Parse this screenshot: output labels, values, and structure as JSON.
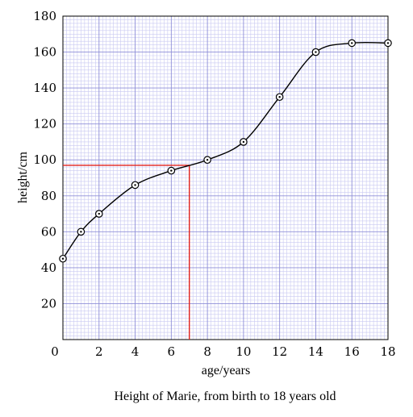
{
  "chart_data": {
    "type": "line",
    "caption": "Height of Marie, from birth to 18 years old",
    "xlabel": "age/years",
    "ylabel": "height/cm",
    "xlim": [
      0,
      18
    ],
    "ylim": [
      0,
      180
    ],
    "x_ticks": [
      0,
      2,
      4,
      6,
      8,
      10,
      12,
      14,
      16,
      18
    ],
    "y_ticks": [
      20,
      40,
      60,
      80,
      100,
      120,
      140,
      160,
      180
    ],
    "grid": true,
    "series": [
      {
        "x": [
          0,
          1,
          2,
          4,
          6,
          8,
          10,
          12,
          14,
          16,
          18
        ],
        "y": [
          45,
          60,
          70,
          86,
          94,
          100,
          110,
          135,
          160,
          165,
          165
        ]
      }
    ],
    "annotation": {
      "type": "reading-lines",
      "x": 7,
      "y": 97,
      "color": "#e0201b"
    },
    "colors": {
      "grid_fine": "#c9c9f2",
      "grid_major": "#8f8fd8",
      "line": "#000000"
    }
  }
}
